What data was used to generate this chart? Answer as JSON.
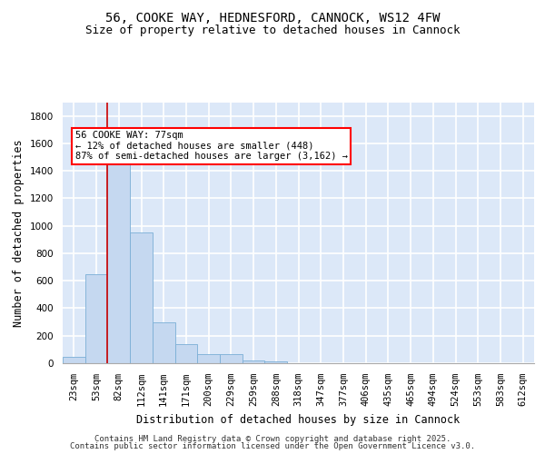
{
  "title_line1": "56, COOKE WAY, HEDNESFORD, CANNOCK, WS12 4FW",
  "title_line2": "Size of property relative to detached houses in Cannock",
  "xlabel": "Distribution of detached houses by size in Cannock",
  "ylabel": "Number of detached properties",
  "categories": [
    "23sqm",
    "53sqm",
    "82sqm",
    "112sqm",
    "141sqm",
    "171sqm",
    "200sqm",
    "229sqm",
    "259sqm",
    "288sqm",
    "318sqm",
    "347sqm",
    "377sqm",
    "406sqm",
    "435sqm",
    "465sqm",
    "494sqm",
    "524sqm",
    "553sqm",
    "583sqm",
    "612sqm"
  ],
  "values": [
    45,
    650,
    1500,
    950,
    300,
    140,
    65,
    65,
    20,
    10,
    0,
    0,
    0,
    0,
    0,
    0,
    0,
    0,
    0,
    0,
    0
  ],
  "bar_color": "#c5d8f0",
  "bar_edge_color": "#7aaed6",
  "annotation_box_text": "56 COOKE WAY: 77sqm\n← 12% of detached houses are smaller (448)\n87% of semi-detached houses are larger (3,162) →",
  "vline_color": "#cc0000",
  "ylim": [
    0,
    1900
  ],
  "yticks": [
    0,
    200,
    400,
    600,
    800,
    1000,
    1200,
    1400,
    1600,
    1800
  ],
  "bg_color": "#dce8f8",
  "grid_color": "white",
  "footer_line1": "Contains HM Land Registry data © Crown copyright and database right 2025.",
  "footer_line2": "Contains public sector information licensed under the Open Government Licence v3.0.",
  "title_fontsize": 10,
  "subtitle_fontsize": 9,
  "axis_label_fontsize": 8.5,
  "tick_fontsize": 7.5,
  "annotation_fontsize": 7.5,
  "footer_fontsize": 6.5
}
